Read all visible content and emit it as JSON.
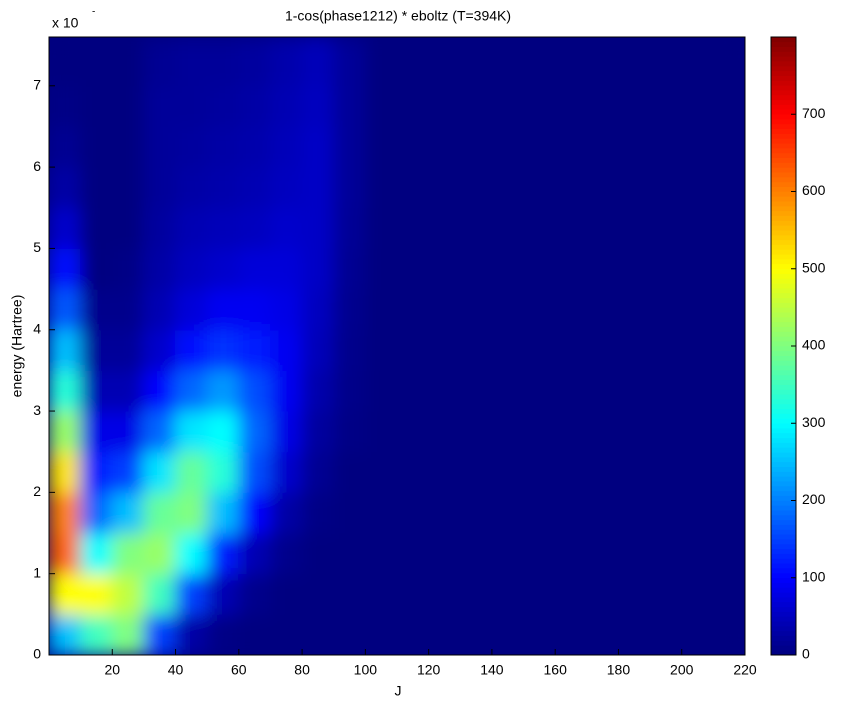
{
  "chart_data": {
    "type": "heatmap",
    "title": "1-cos(phase1212) * eboltz (T=394K)",
    "x_label": "J",
    "y_label": "energy (Hartree)",
    "y_multiplier": "x 10",
    "y_exponent": "-",
    "x_bins": [
      0,
      10,
      20,
      30,
      40,
      50,
      60,
      70,
      80,
      90,
      100,
      110,
      120,
      130,
      140,
      150,
      160,
      170,
      180,
      190,
      200,
      210,
      220
    ],
    "y_bins": [
      0,
      0.5,
      1,
      1.5,
      2,
      2.5,
      3,
      3.5,
      4,
      4.5,
      5,
      5.5,
      6,
      6.5,
      7,
      7.5,
      7.6
    ],
    "values": [
      [
        250,
        350,
        400,
        150,
        30,
        5,
        0,
        0,
        0,
        0,
        0,
        0,
        0,
        0,
        0,
        0,
        0,
        0,
        0,
        0,
        0,
        0
      ],
      [
        500,
        500,
        450,
        350,
        150,
        40,
        10,
        0,
        0,
        0,
        0,
        0,
        0,
        0,
        0,
        0,
        0,
        0,
        0,
        0,
        0,
        0
      ],
      [
        620,
        300,
        400,
        420,
        300,
        120,
        40,
        10,
        0,
        0,
        0,
        0,
        0,
        0,
        0,
        0,
        0,
        0,
        0,
        0,
        0,
        0
      ],
      [
        600,
        180,
        250,
        380,
        400,
        250,
        100,
        30,
        5,
        0,
        0,
        0,
        0,
        0,
        0,
        0,
        0,
        0,
        0,
        0,
        0,
        0
      ],
      [
        520,
        120,
        150,
        280,
        380,
        330,
        160,
        60,
        15,
        0,
        0,
        0,
        0,
        0,
        0,
        0,
        0,
        0,
        0,
        0,
        0,
        0
      ],
      [
        420,
        80,
        80,
        180,
        280,
        300,
        180,
        80,
        25,
        5,
        0,
        0,
        0,
        0,
        0,
        0,
        0,
        0,
        0,
        0,
        0,
        0
      ],
      [
        330,
        40,
        40,
        100,
        180,
        220,
        160,
        90,
        35,
        8,
        0,
        0,
        0,
        0,
        0,
        0,
        0,
        0,
        0,
        0,
        0,
        0
      ],
      [
        250,
        20,
        20,
        60,
        110,
        140,
        120,
        90,
        45,
        10,
        0,
        0,
        0,
        0,
        0,
        0,
        0,
        0,
        0,
        0,
        0,
        0
      ],
      [
        170,
        10,
        10,
        40,
        70,
        90,
        90,
        80,
        50,
        12,
        0,
        0,
        0,
        0,
        0,
        0,
        0,
        0,
        0,
        0,
        0,
        0
      ],
      [
        110,
        0,
        5,
        30,
        50,
        60,
        70,
        70,
        55,
        15,
        0,
        0,
        0,
        0,
        0,
        0,
        0,
        0,
        0,
        0,
        0,
        0
      ],
      [
        60,
        0,
        0,
        25,
        40,
        45,
        50,
        60,
        55,
        18,
        0,
        0,
        0,
        0,
        0,
        0,
        0,
        0,
        0,
        0,
        0,
        0
      ],
      [
        30,
        0,
        0,
        20,
        30,
        35,
        40,
        50,
        55,
        20,
        0,
        0,
        0,
        0,
        0,
        0,
        0,
        0,
        0,
        0,
        0,
        0
      ],
      [
        15,
        0,
        0,
        20,
        25,
        30,
        35,
        45,
        55,
        20,
        0,
        0,
        0,
        0,
        0,
        0,
        0,
        0,
        0,
        0,
        0,
        0
      ],
      [
        5,
        0,
        0,
        20,
        20,
        25,
        30,
        40,
        50,
        20,
        0,
        0,
        0,
        0,
        0,
        0,
        0,
        0,
        0,
        0,
        0,
        0
      ],
      [
        0,
        0,
        0,
        15,
        20,
        20,
        25,
        35,
        45,
        20,
        0,
        0,
        0,
        0,
        0,
        0,
        0,
        0,
        0,
        0,
        0,
        0
      ],
      [
        0,
        0,
        0,
        10,
        15,
        15,
        20,
        30,
        40,
        15,
        0,
        0,
        0,
        0,
        0,
        0,
        0,
        0,
        0,
        0,
        0,
        0
      ]
    ],
    "xlim": [
      0,
      220
    ],
    "ylim": [
      0,
      7.6
    ],
    "xticks": [
      20,
      40,
      60,
      80,
      100,
      120,
      140,
      160,
      180,
      200,
      220
    ],
    "yticks": [
      0,
      1,
      2,
      3,
      4,
      5,
      6,
      7
    ],
    "clim": [
      0,
      800
    ],
    "colorbar_ticks": [
      0,
      100,
      200,
      300,
      400,
      500,
      600,
      700
    ],
    "colormap": "jet"
  }
}
